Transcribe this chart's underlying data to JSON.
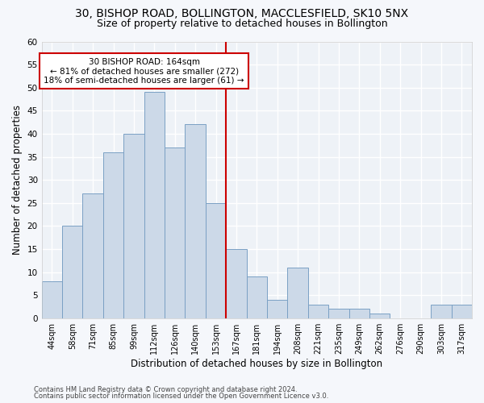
{
  "title": "30, BISHOP ROAD, BOLLINGTON, MACCLESFIELD, SK10 5NX",
  "subtitle": "Size of property relative to detached houses in Bollington",
  "xlabel": "Distribution of detached houses by size in Bollington",
  "ylabel": "Number of detached properties",
  "categories": [
    "44sqm",
    "58sqm",
    "71sqm",
    "85sqm",
    "99sqm",
    "112sqm",
    "126sqm",
    "140sqm",
    "153sqm",
    "167sqm",
    "181sqm",
    "194sqm",
    "208sqm",
    "221sqm",
    "235sqm",
    "249sqm",
    "262sqm",
    "276sqm",
    "290sqm",
    "303sqm",
    "317sqm"
  ],
  "values": [
    8,
    20,
    27,
    36,
    40,
    49,
    37,
    42,
    25,
    15,
    9,
    4,
    11,
    3,
    2,
    2,
    1,
    0,
    0,
    3,
    3
  ],
  "bar_color": "#ccd9e8",
  "bar_edge_color": "#7aa0c4",
  "line_x_index": 8.5,
  "annotation_text": "30 BISHOP ROAD: 164sqm\n← 81% of detached houses are smaller (272)\n18% of semi-detached houses are larger (61) →",
  "annotation_box_color": "#ffffff",
  "annotation_border_color": "#cc0000",
  "line_color": "#cc0000",
  "ylim": [
    0,
    60
  ],
  "yticks": [
    0,
    5,
    10,
    15,
    20,
    25,
    30,
    35,
    40,
    45,
    50,
    55,
    60
  ],
  "bg_color": "#eef2f7",
  "grid_color": "#ffffff",
  "footer1": "Contains HM Land Registry data © Crown copyright and database right 2024.",
  "footer2": "Contains public sector information licensed under the Open Government Licence v3.0.",
  "title_fontsize": 10,
  "subtitle_fontsize": 9,
  "xlabel_fontsize": 8.5,
  "ylabel_fontsize": 8.5,
  "fig_bg": "#f5f7fb"
}
